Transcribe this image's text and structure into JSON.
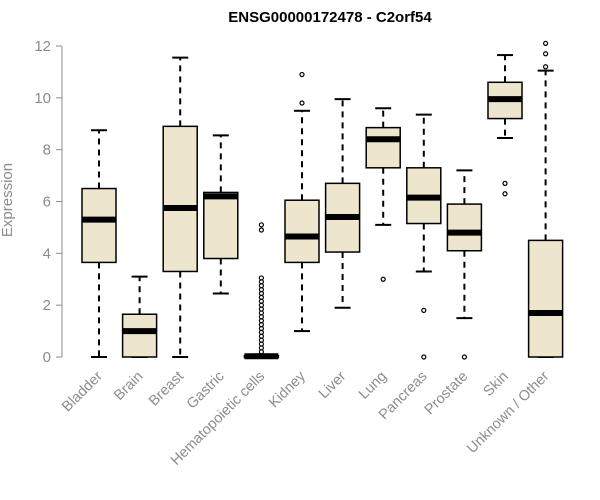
{
  "chart_data": {
    "type": "boxplot",
    "title": "ENSG00000172478 - C2orf54",
    "xlabel": "",
    "ylabel": "Expression",
    "ylim": [
      0,
      12
    ],
    "yticks": [
      0,
      2,
      4,
      6,
      8,
      10,
      12
    ],
    "box_color": "#ede6cc",
    "categories": [
      "Bladder",
      "Brain",
      "Breast",
      "Gastric",
      "Hematopoietic cells",
      "Kidney",
      "Liver",
      "Lung",
      "Pancreas",
      "Prostate",
      "Skin",
      "Unknown / Other"
    ],
    "boxes": [
      {
        "name": "Bladder",
        "whislo": 0.0,
        "q1": 3.65,
        "med": 5.3,
        "q3": 6.5,
        "whishi": 8.75,
        "fliers": []
      },
      {
        "name": "Brain",
        "whislo": 0.0,
        "q1": 0.0,
        "med": 1.0,
        "q3": 1.65,
        "whishi": 3.1,
        "fliers": []
      },
      {
        "name": "Breast",
        "whislo": 0.0,
        "q1": 3.3,
        "med": 5.75,
        "q3": 8.9,
        "whishi": 11.55,
        "fliers": []
      },
      {
        "name": "Gastric",
        "whislo": 2.45,
        "q1": 3.8,
        "med": 6.2,
        "q3": 6.35,
        "whishi": 8.55,
        "fliers": []
      },
      {
        "name": "Hematopoietic cells",
        "whislo": 0.0,
        "q1": 0.0,
        "med": 0.03,
        "q3": 0.05,
        "whishi": 0.1,
        "fliers": [
          0.2,
          0.35,
          0.5,
          0.65,
          0.8,
          0.95,
          1.1,
          1.25,
          1.4,
          1.55,
          1.7,
          1.85,
          2.0,
          2.15,
          2.3,
          2.45,
          2.6,
          2.75,
          2.9,
          3.05,
          4.9,
          5.1
        ]
      },
      {
        "name": "Kidney",
        "whislo": 1.0,
        "q1": 3.65,
        "med": 4.65,
        "q3": 6.05,
        "whishi": 9.5,
        "fliers": [
          9.8,
          10.9
        ]
      },
      {
        "name": "Liver",
        "whislo": 1.9,
        "q1": 4.05,
        "med": 5.4,
        "q3": 6.7,
        "whishi": 9.95,
        "fliers": []
      },
      {
        "name": "Lung",
        "whislo": 5.1,
        "q1": 7.3,
        "med": 8.4,
        "q3": 8.85,
        "whishi": 9.6,
        "fliers": [
          3.0
        ]
      },
      {
        "name": "Pancreas",
        "whislo": 3.3,
        "q1": 5.15,
        "med": 6.15,
        "q3": 7.3,
        "whishi": 9.35,
        "fliers": [
          0.0,
          1.8
        ]
      },
      {
        "name": "Prostate",
        "whislo": 1.5,
        "q1": 4.1,
        "med": 4.8,
        "q3": 5.9,
        "whishi": 7.2,
        "fliers": [
          0.0
        ]
      },
      {
        "name": "Skin",
        "whislo": 8.45,
        "q1": 9.2,
        "med": 9.95,
        "q3": 10.6,
        "whishi": 11.65,
        "fliers": [
          6.3,
          6.7
        ]
      },
      {
        "name": "Unknown / Other",
        "whislo": 0.0,
        "q1": 0.0,
        "med": 1.7,
        "q3": 4.5,
        "whishi": 11.05,
        "fliers": [
          11.2,
          11.7,
          12.1
        ]
      }
    ]
  }
}
